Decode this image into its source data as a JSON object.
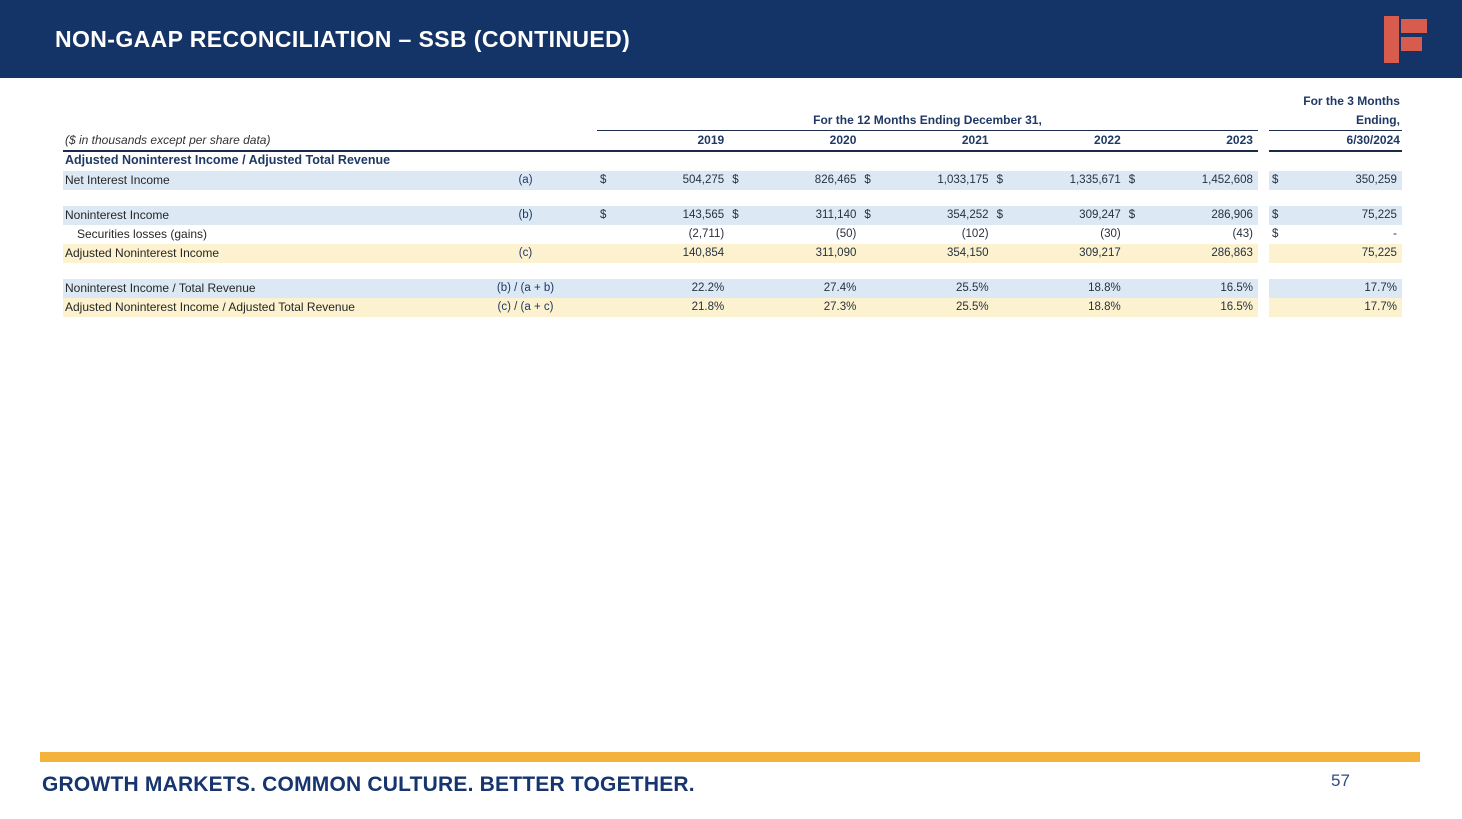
{
  "slide": {
    "title": "NON-GAAP RECONCILIATION – SSB (CONTINUED)",
    "footer_tagline": "GROWTH MARKETS. COMMON CULTURE. BETTER TOGETHER.",
    "page_number": "57",
    "colors": {
      "header_bg": "#143366",
      "accent_bar": "#F3B33C",
      "logo_orange": "#D75C4D",
      "row_blue": "#DCE9F5",
      "row_cream": "#FCF2CF",
      "text_navy": "#1F3864"
    }
  },
  "table": {
    "units_note": "($ in thousands except per share data)",
    "group_header": "For the 12 Months Ending December 31,",
    "years": [
      "2019",
      "2020",
      "2021",
      "2022",
      "2023"
    ],
    "quarter_header_line1": "For the 3 Months",
    "quarter_header_line2": "Ending,",
    "quarter_date": "6/30/2024",
    "section_header": "Adjusted Noninterest Income / Adjusted Total Revenue",
    "rows": [
      {
        "label": "Net Interest Income",
        "ref": "(a)",
        "cells": [
          {
            "cur": "$",
            "val": "504,275"
          },
          {
            "cur": "$",
            "val": "826,465"
          },
          {
            "cur": "$",
            "val": "1,033,175"
          },
          {
            "cur": "$",
            "val": "1,335,671"
          },
          {
            "cur": "$",
            "val": "1,452,608"
          },
          {
            "cur": "$",
            "val": "350,259"
          }
        ]
      },
      {
        "label": "Noninterest Income",
        "ref": "(b)",
        "cells": [
          {
            "cur": "$",
            "val": "143,565"
          },
          {
            "cur": "$",
            "val": "311,140"
          },
          {
            "cur": "$",
            "val": "354,252"
          },
          {
            "cur": "$",
            "val": "309,247"
          },
          {
            "cur": "$",
            "val": "286,906"
          },
          {
            "cur": "$",
            "val": "75,225"
          }
        ]
      },
      {
        "label": "Securities losses (gains)",
        "ref": "",
        "cells": [
          {
            "cur": "",
            "val": "(2,711)"
          },
          {
            "cur": "",
            "val": "(50)"
          },
          {
            "cur": "",
            "val": "(102)"
          },
          {
            "cur": "",
            "val": "(30)"
          },
          {
            "cur": "",
            "val": "(43)"
          },
          {
            "cur": "$",
            "val": "-"
          }
        ]
      },
      {
        "label": "Adjusted Noninterest Income",
        "ref": "(c)",
        "cells": [
          {
            "cur": "",
            "val": "140,854"
          },
          {
            "cur": "",
            "val": "311,090"
          },
          {
            "cur": "",
            "val": "354,150"
          },
          {
            "cur": "",
            "val": "309,217"
          },
          {
            "cur": "",
            "val": "286,863"
          },
          {
            "cur": "",
            "val": "75,225"
          }
        ]
      },
      {
        "label": "Noninterest Income / Total Revenue",
        "ref": "(b) / (a + b)",
        "cells": [
          {
            "cur": "",
            "val": "22.2%"
          },
          {
            "cur": "",
            "val": "27.4%"
          },
          {
            "cur": "",
            "val": "25.5%"
          },
          {
            "cur": "",
            "val": "18.8%"
          },
          {
            "cur": "",
            "val": "16.5%"
          },
          {
            "cur": "",
            "val": "17.7%"
          }
        ]
      },
      {
        "label": "Adjusted Noninterest Income / Adjusted Total Revenue",
        "ref": "(c) / (a + c)",
        "cells": [
          {
            "cur": "",
            "val": "21.8%"
          },
          {
            "cur": "",
            "val": "27.3%"
          },
          {
            "cur": "",
            "val": "25.5%"
          },
          {
            "cur": "",
            "val": "18.8%"
          },
          {
            "cur": "",
            "val": "16.5%"
          },
          {
            "cur": "",
            "val": "17.7%"
          }
        ]
      }
    ]
  }
}
